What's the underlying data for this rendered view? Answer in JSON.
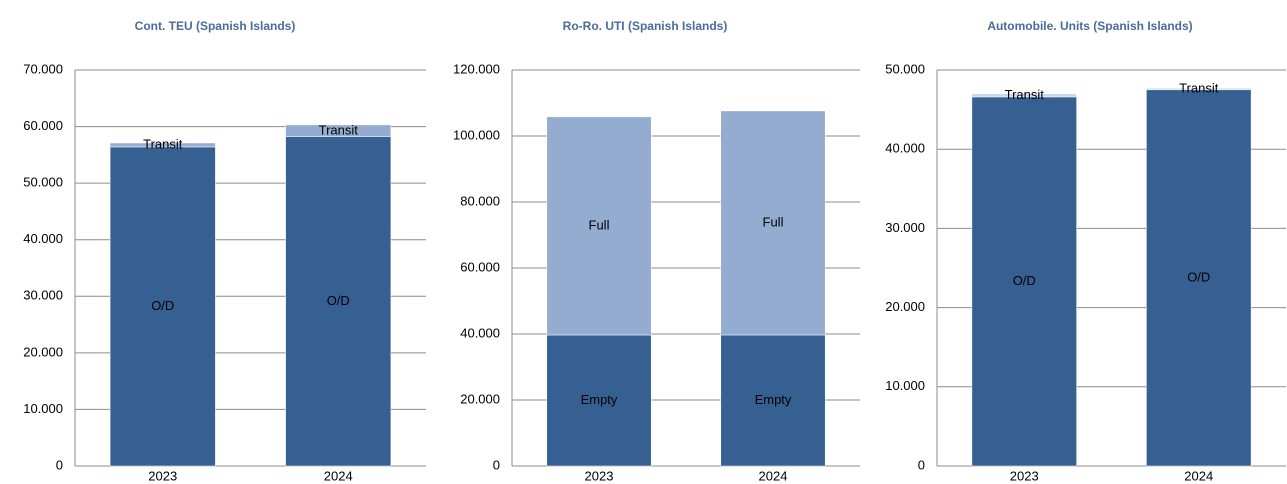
{
  "chart_data": [
    {
      "type": "bar",
      "stacked": true,
      "title": "Cont. TEU (Spanish Islands)",
      "categories": [
        "2023",
        "2024"
      ],
      "series": [
        {
          "name": "O/D",
          "color": "#376092",
          "values": [
            56400,
            58200
          ]
        },
        {
          "name": "Transit",
          "color": "#95acd1",
          "values": [
            700,
            2100
          ]
        }
      ],
      "ylim": [
        0,
        70000
      ],
      "yticks": [
        0,
        {
          "value": 10000,
          "label": "10.000"
        },
        {
          "value": 20000,
          "label": "20.000"
        },
        {
          "value": 30000,
          "label": "30.000"
        },
        {
          "value": 40000,
          "label": "40.000"
        },
        {
          "value": 50000,
          "label": "50.000"
        },
        {
          "value": 60000,
          "label": "60.000"
        },
        {
          "value": 70000,
          "label": "70.000"
        }
      ],
      "grid": true
    },
    {
      "type": "bar",
      "stacked": true,
      "title": "Ro-Ro. UTI (Spanish Islands)",
      "categories": [
        "2023",
        "2024"
      ],
      "series": [
        {
          "name": "Empty",
          "color": "#376092",
          "values": [
            39700,
            39700
          ]
        },
        {
          "name": "Full",
          "color": "#95acd1",
          "values": [
            66100,
            67900
          ]
        }
      ],
      "ylim": [
        0,
        120000
      ],
      "yticks": [
        0,
        {
          "value": 20000,
          "label": "20.000"
        },
        {
          "value": 40000,
          "label": "40.000"
        },
        {
          "value": 60000,
          "label": "60.000"
        },
        {
          "value": 80000,
          "label": "80.000"
        },
        {
          "value": 100000,
          "label": "100.000"
        },
        {
          "value": 120000,
          "label": "120.000"
        }
      ],
      "grid": true
    },
    {
      "type": "bar",
      "stacked": true,
      "title": "Automobile. Units (Spanish Islands)",
      "categories": [
        "2023",
        "2024"
      ],
      "series": [
        {
          "name": "O/D",
          "color": "#376092",
          "values": [
            46600,
            47500
          ]
        },
        {
          "name": "Transit",
          "color": "#c9d6ea",
          "values": [
            400,
            200
          ]
        }
      ],
      "ylim": [
        0,
        50000
      ],
      "yticks": [
        0,
        {
          "value": 10000,
          "label": "10.000"
        },
        {
          "value": 20000,
          "label": "20.000"
        },
        {
          "value": 30000,
          "label": "30.000"
        },
        {
          "value": 40000,
          "label": "40.000"
        },
        {
          "value": 50000,
          "label": "50.000"
        }
      ],
      "grid": true
    }
  ]
}
